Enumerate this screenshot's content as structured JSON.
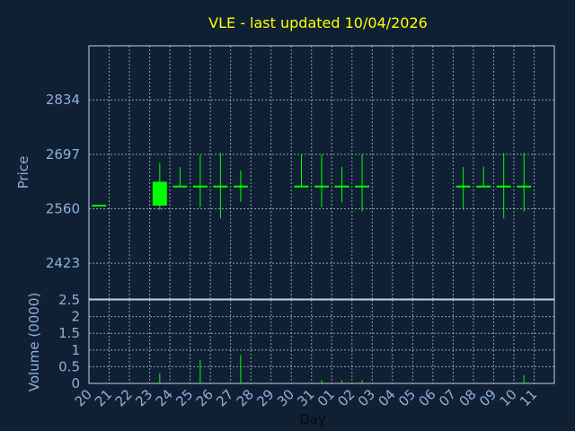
{
  "chart_data": {
    "type": "candlestick",
    "title": "VLE - last updated 10/04/2026",
    "xlabel": "Day",
    "price_panel": {
      "ylabel": "Price",
      "yticks": [
        2423,
        2560,
        2697,
        2834
      ],
      "ylim": [
        2333,
        2970
      ]
    },
    "volume_panel": {
      "ylabel": "Volume (0000)",
      "yticks": [
        "0",
        "0.5",
        "1",
        "1.5",
        "2",
        "2.5"
      ],
      "ylim": [
        0,
        2.5
      ]
    },
    "x_labels": [
      "20",
      "21",
      "22",
      "23",
      "24",
      "25",
      "26",
      "27",
      "28",
      "29",
      "30",
      "31",
      "01",
      "02",
      "03",
      "04",
      "05",
      "06",
      "07",
      "08",
      "09",
      "10",
      "11"
    ],
    "candles": [
      {
        "day": "20",
        "open": 2568,
        "high": 2568,
        "low": 2566,
        "close": 2566,
        "volume": 0
      },
      {
        "day": "23",
        "open": 2568,
        "high": 2675,
        "low": 2557,
        "close": 2628,
        "volume": 0.3
      },
      {
        "day": "24",
        "open": 2616,
        "high": 2665,
        "low": 2616,
        "close": 2616,
        "volume": 0
      },
      {
        "day": "25",
        "open": 2616,
        "high": 2695,
        "low": 2564,
        "close": 2616,
        "volume": 0.7
      },
      {
        "day": "26",
        "open": 2616,
        "high": 2700,
        "low": 2536,
        "close": 2616,
        "volume": 0
      },
      {
        "day": "27",
        "open": 2616,
        "high": 2656,
        "low": 2577,
        "close": 2616,
        "volume": 0.85
      },
      {
        "day": "30",
        "open": 2616,
        "high": 2697,
        "low": 2616,
        "close": 2616,
        "volume": 0
      },
      {
        "day": "31",
        "open": 2616,
        "high": 2697,
        "low": 2564,
        "close": 2616,
        "volume": 0.1
      },
      {
        "day": "01",
        "open": 2616,
        "high": 2665,
        "low": 2576,
        "close": 2616,
        "volume": 0.1
      },
      {
        "day": "02",
        "open": 2616,
        "high": 2697,
        "low": 2553,
        "close": 2616,
        "volume": 0.1
      },
      {
        "day": "07",
        "open": 2616,
        "high": 2665,
        "low": 2557,
        "close": 2616,
        "volume": 0
      },
      {
        "day": "08",
        "open": 2616,
        "high": 2666,
        "low": 2616,
        "close": 2616,
        "volume": 0
      },
      {
        "day": "09",
        "open": 2616,
        "high": 2700,
        "low": 2536,
        "close": 2616,
        "volume": 0
      },
      {
        "day": "10",
        "open": 2616,
        "high": 2700,
        "low": 2553,
        "close": 2616,
        "volume": 0.25
      }
    ],
    "grid": true,
    "colors": {
      "background": "#0f2035",
      "grid": "#c8d0e0",
      "candle": "#00ff00",
      "title": "#ffff00",
      "labels": "#8fb0d8",
      "axis_title": "#0a0a0a"
    }
  }
}
